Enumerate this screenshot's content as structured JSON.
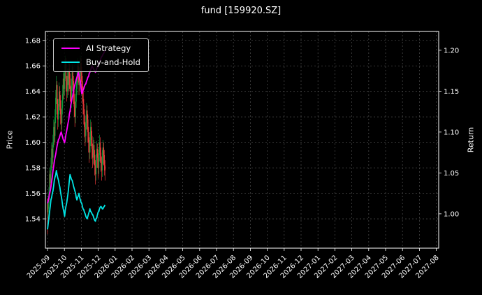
{
  "title": "fund [159920.SZ]",
  "legend": {
    "items": [
      {
        "label": "AI Strategy",
        "color": "#ff00ff"
      },
      {
        "label": "Buy-and-Hold",
        "color": "#00e5e5"
      }
    ]
  },
  "chart_data": {
    "type": "candlestick+line",
    "title": "fund [159920.SZ]",
    "background": "#000000",
    "grid": "dashed",
    "legend_position": "upper-left",
    "colors": {
      "foreground": "#ffffff",
      "grid": "#464646",
      "background": "#000000"
    },
    "left_axis": {
      "label": "Price",
      "range": [
        1.517,
        1.687
      ],
      "ticks": [
        1.54,
        1.56,
        1.58,
        1.6,
        1.62,
        1.64,
        1.66,
        1.68
      ],
      "tick_labels": [
        "1.54",
        "1.56",
        "1.58",
        "1.60",
        "1.62",
        "1.64",
        "1.66",
        "1.68"
      ]
    },
    "right_axis": {
      "label": "Return",
      "range": [
        0.958,
        1.223
      ],
      "ticks": [
        1.0,
        1.05,
        1.1,
        1.15,
        1.2
      ],
      "tick_labels": [
        "1.00",
        "1.05",
        "1.10",
        "1.15",
        "1.20"
      ]
    },
    "x_axis": {
      "ticks": [
        "2025-09",
        "2025-10",
        "2025-11",
        "2025-12",
        "2026-01",
        "2026-02",
        "2026-03",
        "2026-04",
        "2026-05",
        "2026-06",
        "2026-07",
        "2026-08",
        "2026-09",
        "2026-10",
        "2026-11",
        "2026-12",
        "2027-01",
        "2027-02",
        "2027-03",
        "2027-04",
        "2027-05",
        "2027-06",
        "2027-07",
        "2027-08"
      ]
    },
    "candles": {
      "axis": "left",
      "up_color": "#0f993a",
      "down_color": "#ef3b3b",
      "start_month_index": 0,
      "end_month_index": 3.4,
      "ohlc": [
        [
          1.552,
          1.556,
          1.528,
          1.545
        ],
        [
          1.545,
          1.558,
          1.54,
          1.552
        ],
        [
          1.552,
          1.565,
          1.548,
          1.56
        ],
        [
          1.56,
          1.58,
          1.555,
          1.575
        ],
        [
          1.575,
          1.578,
          1.56,
          1.568
        ],
        [
          1.568,
          1.588,
          1.563,
          1.582
        ],
        [
          1.582,
          1.6,
          1.578,
          1.595
        ],
        [
          1.595,
          1.598,
          1.58,
          1.588
        ],
        [
          1.588,
          1.606,
          1.583,
          1.6
        ],
        [
          1.6,
          1.618,
          1.596,
          1.612
        ],
        [
          1.612,
          1.616,
          1.598,
          1.605
        ],
        [
          1.605,
          1.626,
          1.6,
          1.62
        ],
        [
          1.62,
          1.641,
          1.615,
          1.635
        ],
        [
          1.635,
          1.652,
          1.63,
          1.645
        ],
        [
          1.645,
          1.648,
          1.622,
          1.63
        ],
        [
          1.63,
          1.634,
          1.61,
          1.618
        ],
        [
          1.618,
          1.634,
          1.612,
          1.628
        ],
        [
          1.628,
          1.647,
          1.622,
          1.64
        ],
        [
          1.64,
          1.644,
          1.625,
          1.633
        ],
        [
          1.633,
          1.637,
          1.614,
          1.622
        ],
        [
          1.622,
          1.626,
          1.606,
          1.615
        ],
        [
          1.615,
          1.633,
          1.61,
          1.627
        ],
        [
          1.627,
          1.645,
          1.622,
          1.638
        ],
        [
          1.638,
          1.656,
          1.633,
          1.65
        ],
        [
          1.65,
          1.654,
          1.634,
          1.642
        ],
        [
          1.642,
          1.661,
          1.637,
          1.655
        ],
        [
          1.655,
          1.668,
          1.65,
          1.662
        ],
        [
          1.662,
          1.666,
          1.64,
          1.648
        ],
        [
          1.648,
          1.652,
          1.632,
          1.64
        ],
        [
          1.64,
          1.658,
          1.635,
          1.652
        ],
        [
          1.652,
          1.656,
          1.637,
          1.645
        ],
        [
          1.645,
          1.664,
          1.64,
          1.658
        ],
        [
          1.658,
          1.662,
          1.642,
          1.65
        ],
        [
          1.65,
          1.654,
          1.632,
          1.64
        ],
        [
          1.64,
          1.644,
          1.624,
          1.632
        ],
        [
          1.632,
          1.65,
          1.627,
          1.645
        ],
        [
          1.645,
          1.661,
          1.64,
          1.655
        ],
        [
          1.655,
          1.659,
          1.64,
          1.648
        ],
        [
          1.648,
          1.652,
          1.63,
          1.638
        ],
        [
          1.638,
          1.642,
          1.62,
          1.628
        ],
        [
          1.628,
          1.632,
          1.612,
          1.62
        ],
        [
          1.62,
          1.638,
          1.615,
          1.632
        ],
        [
          1.632,
          1.648,
          1.627,
          1.642
        ],
        [
          1.642,
          1.656,
          1.637,
          1.65
        ],
        [
          1.65,
          1.666,
          1.645,
          1.66
        ],
        [
          1.66,
          1.664,
          1.647,
          1.655
        ],
        [
          1.655,
          1.659,
          1.637,
          1.645
        ],
        [
          1.645,
          1.658,
          1.64,
          1.652
        ],
        [
          1.652,
          1.668,
          1.647,
          1.662
        ],
        [
          1.662,
          1.666,
          1.647,
          1.655
        ],
        [
          1.655,
          1.659,
          1.64,
          1.648
        ],
        [
          1.648,
          1.652,
          1.632,
          1.64
        ],
        [
          1.64,
          1.644,
          1.622,
          1.63
        ],
        [
          1.63,
          1.634,
          1.614,
          1.622
        ],
        [
          1.622,
          1.626,
          1.604,
          1.612
        ],
        [
          1.612,
          1.616,
          1.597,
          1.605
        ],
        [
          1.605,
          1.621,
          1.6,
          1.615
        ],
        [
          1.615,
          1.631,
          1.61,
          1.625
        ],
        [
          1.625,
          1.629,
          1.61,
          1.618
        ],
        [
          1.618,
          1.622,
          1.6,
          1.608
        ],
        [
          1.608,
          1.612,
          1.592,
          1.6
        ],
        [
          1.6,
          1.604,
          1.584,
          1.592
        ],
        [
          1.592,
          1.608,
          1.587,
          1.602
        ],
        [
          1.602,
          1.618,
          1.597,
          1.612
        ],
        [
          1.612,
          1.616,
          1.597,
          1.605
        ],
        [
          1.605,
          1.609,
          1.587,
          1.595
        ],
        [
          1.595,
          1.599,
          1.58,
          1.588
        ],
        [
          1.588,
          1.604,
          1.583,
          1.598
        ],
        [
          1.598,
          1.602,
          1.582,
          1.59
        ],
        [
          1.59,
          1.594,
          1.574,
          1.582
        ],
        [
          1.582,
          1.586,
          1.567,
          1.575
        ],
        [
          1.575,
          1.591,
          1.57,
          1.585
        ],
        [
          1.585,
          1.601,
          1.58,
          1.595
        ],
        [
          1.595,
          1.599,
          1.58,
          1.588
        ],
        [
          1.588,
          1.592,
          1.572,
          1.58
        ],
        [
          1.58,
          1.596,
          1.575,
          1.59
        ],
        [
          1.59,
          1.606,
          1.585,
          1.6
        ],
        [
          1.6,
          1.604,
          1.584,
          1.592
        ],
        [
          1.592,
          1.596,
          1.577,
          1.585
        ],
        [
          1.585,
          1.589,
          1.57,
          1.578
        ],
        [
          1.578,
          1.594,
          1.573,
          1.588
        ],
        [
          1.588,
          1.602,
          1.583,
          1.596
        ],
        [
          1.596,
          1.6,
          1.582,
          1.59
        ],
        [
          1.59,
          1.594,
          1.574,
          1.582
        ],
        [
          1.582,
          1.586,
          1.57,
          1.578
        ]
      ]
    },
    "series": [
      {
        "name": "AI Strategy",
        "axis": "right",
        "color": "#ff00ff",
        "values": [
          1.013,
          1.016,
          1.02,
          1.025,
          1.028,
          1.033,
          1.039,
          1.045,
          1.052,
          1.058,
          1.064,
          1.069,
          1.073,
          1.078,
          1.083,
          1.087,
          1.091,
          1.092,
          1.095,
          1.098,
          1.1,
          1.097,
          1.094,
          1.091,
          1.089,
          1.087,
          1.092,
          1.097,
          1.101,
          1.106,
          1.111,
          1.115,
          1.122,
          1.126,
          1.133,
          1.137,
          1.142,
          1.145,
          1.15,
          1.154,
          1.158,
          1.161,
          1.164,
          1.167,
          1.17,
          1.173,
          1.17,
          1.165,
          1.162,
          1.154,
          1.147,
          1.148,
          1.151,
          1.153,
          1.156,
          1.158,
          1.159,
          1.162,
          1.164,
          1.167,
          1.168,
          1.172,
          1.173,
          1.176,
          1.178,
          1.181,
          1.179,
          1.178,
          1.176,
          1.175,
          1.173,
          1.175,
          1.178,
          1.179,
          1.182,
          1.184,
          1.186,
          1.187,
          1.19,
          1.192,
          1.193,
          1.195,
          1.196,
          1.198,
          1.2
        ]
      },
      {
        "name": "Buy-and-Hold",
        "axis": "right",
        "color": "#00e5e5",
        "values": [
          0.981,
          0.988,
          0.995,
          1.002,
          1.009,
          1.017,
          1.02,
          1.025,
          1.028,
          1.034,
          1.041,
          1.045,
          1.048,
          1.053,
          1.048,
          1.044,
          1.041,
          1.036,
          1.033,
          1.027,
          1.022,
          1.017,
          1.011,
          1.006,
          1.002,
          0.997,
          1.005,
          1.009,
          1.013,
          1.019,
          1.025,
          1.033,
          1.041,
          1.048,
          1.045,
          1.042,
          1.041,
          1.038,
          1.034,
          1.031,
          1.028,
          1.025,
          1.02,
          1.017,
          1.02,
          1.022,
          1.025,
          1.02,
          1.017,
          1.014,
          1.013,
          1.009,
          1.006,
          1.005,
          1.002,
          1.0,
          0.997,
          0.995,
          0.994,
          0.997,
          1.0,
          1.003,
          1.006,
          1.003,
          1.002,
          1.0,
          0.999,
          0.997,
          0.994,
          0.992,
          0.991,
          0.994,
          0.995,
          0.999,
          1.002,
          1.003,
          1.006,
          1.008,
          1.009,
          1.008,
          1.006,
          1.006,
          1.008,
          1.009,
          1.011
        ]
      }
    ]
  }
}
